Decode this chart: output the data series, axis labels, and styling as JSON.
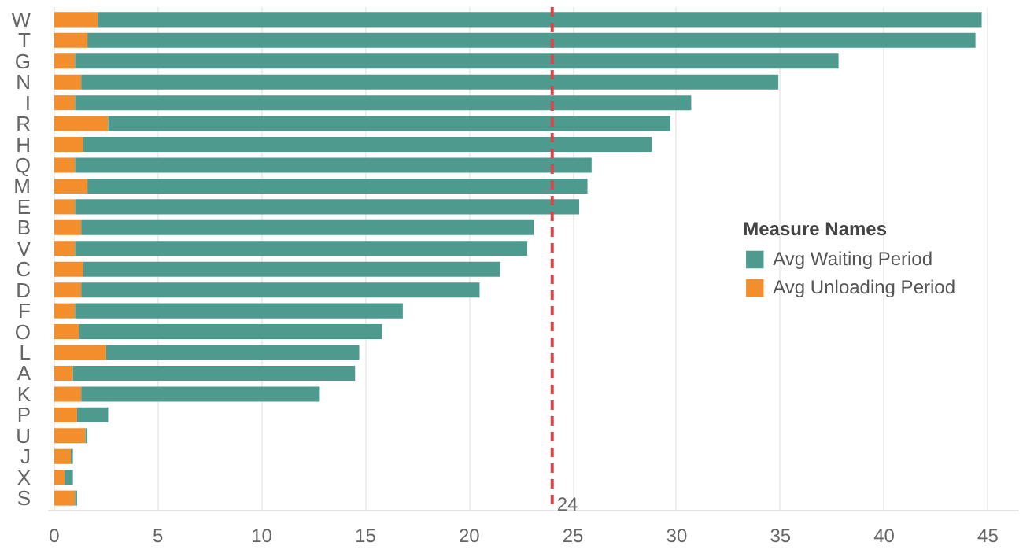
{
  "chart_data": {
    "type": "bar",
    "orientation": "horizontal",
    "stacked": true,
    "categories": [
      "W",
      "T",
      "G",
      "N",
      "I",
      "R",
      "H",
      "Q",
      "M",
      "E",
      "B",
      "V",
      "C",
      "D",
      "F",
      "O",
      "L",
      "A",
      "K",
      "P",
      "U",
      "J",
      "X",
      "S"
    ],
    "series": [
      {
        "name": "Avg Unloading Period",
        "color": "#f28e2b",
        "values": [
          2.1,
          1.6,
          1.0,
          1.3,
          1.0,
          2.6,
          1.4,
          1.0,
          1.6,
          1.0,
          1.3,
          1.0,
          1.4,
          1.3,
          1.0,
          1.2,
          2.5,
          0.9,
          1.3,
          1.1,
          1.5,
          0.8,
          0.5,
          1.0
        ]
      },
      {
        "name": "Avg Waiting Period",
        "color": "#4e9a8f",
        "values": [
          42.6,
          42.8,
          36.8,
          33.6,
          29.7,
          27.1,
          27.4,
          24.9,
          24.1,
          24.3,
          21.8,
          21.8,
          20.1,
          19.2,
          15.8,
          14.6,
          12.2,
          13.6,
          11.5,
          1.5,
          0.1,
          0.1,
          0.4,
          0.1
        ]
      }
    ],
    "xlim": [
      -0.3,
      46.5
    ],
    "xticks": [
      0,
      5,
      10,
      15,
      20,
      25,
      30,
      35,
      40,
      45
    ],
    "ref_lines": [
      {
        "axis": "x",
        "value": 24,
        "label": "24",
        "color": "#d6474b",
        "line_style": "dashed"
      }
    ],
    "legend_title": "Measure Names",
    "legend": "right",
    "grid": "x"
  }
}
